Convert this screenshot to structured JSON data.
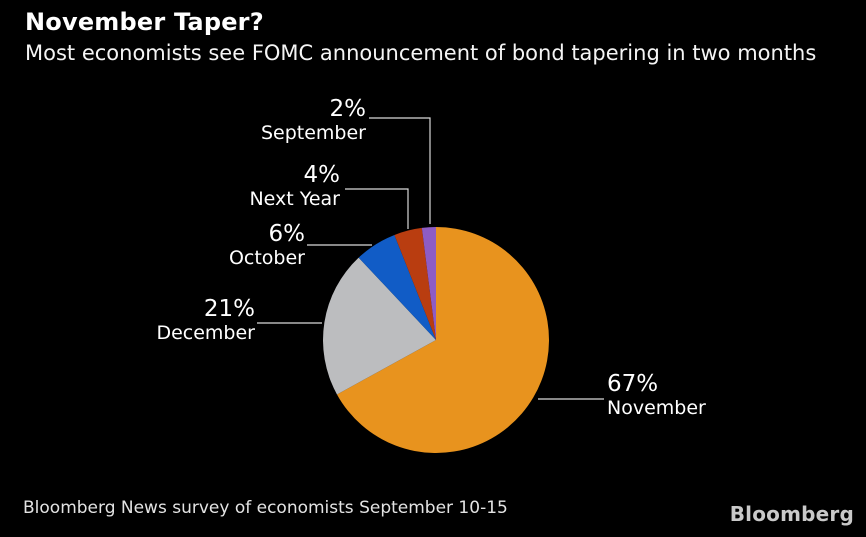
{
  "header": {
    "title": "November Taper?",
    "subtitle": "Most economists see FOMC announcement of bond tapering in two months"
  },
  "footer": {
    "source": "Bloomberg News survey of economists September 10-15",
    "logo": "Bloomberg"
  },
  "colors": {
    "background": "#000000",
    "text": "#FFFFFF",
    "leader_line": "#D9D9D9",
    "footer_text": "#E3E3E3",
    "logo_text": "#C9C9C9",
    "november_orange": "#E8931E",
    "december_gray": "#BCBDBF",
    "october_blue": "#115CC6",
    "next_year_rust": "#B93D10",
    "september_purple": "#8E5CC4"
  },
  "chart_data": {
    "type": "pie",
    "title": "November Taper?",
    "subtitle": "Most economists see FOMC announcement of bond tapering in two months",
    "source": "Bloomberg News survey of economists September 10-15",
    "unit": "percent",
    "start_angle_deg": 0,
    "direction": "clockwise",
    "legend": "none",
    "center": [
      436,
      340
    ],
    "radius": 113,
    "slices": [
      {
        "label": "November",
        "value": 67,
        "color": "#E8931E"
      },
      {
        "label": "December",
        "value": 21,
        "color": "#BCBDBF"
      },
      {
        "label": "October",
        "value": 6,
        "color": "#115CC6"
      },
      {
        "label": "Next Year",
        "value": 4,
        "color": "#B93D10"
      },
      {
        "label": "September",
        "value": 2,
        "color": "#8E5CC4"
      }
    ]
  },
  "callouts": [
    {
      "pct": "2%",
      "name": "September"
    },
    {
      "pct": "4%",
      "name": "Next Year"
    },
    {
      "pct": "6%",
      "name": "October"
    },
    {
      "pct": "21%",
      "name": "December"
    },
    {
      "pct": "67%",
      "name": "November"
    }
  ]
}
